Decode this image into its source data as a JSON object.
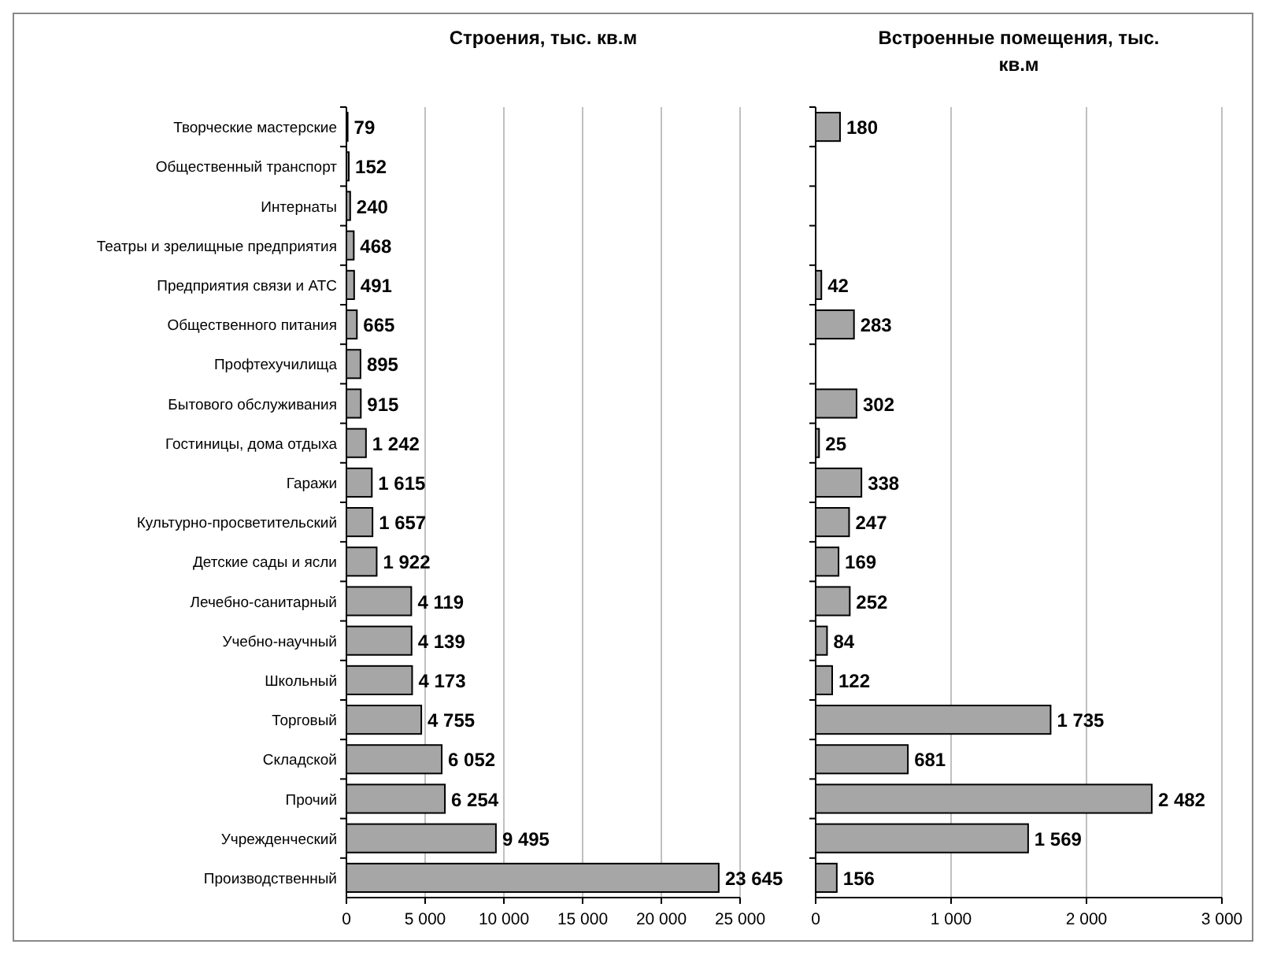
{
  "chart_data": [
    {
      "type": "bar",
      "orientation": "horizontal",
      "title": "Строения, тыс. кв.м",
      "categories": [
        "Творческие мастерские",
        "Общественный транспорт",
        "Интернаты",
        "Театры и зрелищные предприятия",
        "Предприятия связи и АТС",
        "Общественного питания",
        "Профтехучилища",
        "Бытового обслуживания",
        "Гостиницы, дома отдыха",
        "Гаражи",
        "Культурно-просветительский",
        "Детские сады и ясли",
        "Лечебно-санитарный",
        "Учебно-научный",
        "Школьный",
        "Торговый",
        "Складской",
        "Прочий",
        "Учрежденческий",
        "Производственный"
      ],
      "values": [
        79,
        152,
        240,
        468,
        491,
        665,
        895,
        915,
        1242,
        1615,
        1657,
        1922,
        4119,
        4139,
        4173,
        4755,
        6052,
        6254,
        9495,
        23645
      ],
      "value_labels": [
        "79",
        "152",
        "240",
        "468",
        "491",
        "665",
        "895",
        "915",
        "1 242",
        "1 615",
        "1 657",
        "1 922",
        "4 119",
        "4 139",
        "4 173",
        "4 755",
        "6 052",
        "6 254",
        "9 495",
        "23 645"
      ],
      "color": "#a6a6a6",
      "xlim": [
        0,
        25000
      ],
      "xticks": [
        0,
        {
          "value": 5000,
          "label": "5 000"
        },
        {
          "value": 10000,
          "label": "10 000"
        },
        {
          "value": 15000,
          "label": "15 000"
        },
        {
          "value": 20000,
          "label": "20 000"
        },
        {
          "value": 25000,
          "label": "25 000"
        }
      ],
      "grid": "x"
    },
    {
      "type": "bar",
      "orientation": "horizontal",
      "title": "Встроенные помещения, тыс. кв.м",
      "categories": [
        null,
        null,
        null,
        null,
        null,
        null,
        null,
        null,
        null,
        null,
        null,
        null,
        null,
        null,
        null,
        null,
        null,
        null,
        null,
        null
      ],
      "values": [
        180,
        null,
        null,
        null,
        42,
        283,
        null,
        302,
        25,
        338,
        247,
        169,
        252,
        84,
        122,
        1735,
        681,
        2482,
        1569,
        156
      ],
      "value_labels": [
        "180",
        null,
        null,
        null,
        "42",
        "283",
        null,
        "302",
        "25",
        "338",
        "247",
        "169",
        "252",
        "84",
        "122",
        "1 735",
        "681",
        "2 482",
        "1 569",
        "156"
      ],
      "color": "#a6a6a6",
      "xlim": [
        0,
        3000
      ],
      "xticks": [
        0,
        {
          "value": 1000,
          "label": "1 000"
        },
        {
          "value": 2000,
          "label": "2 000"
        },
        {
          "value": 3000,
          "label": "3 000"
        }
      ],
      "grid": "x",
      "tick_labels": "x"
    }
  ]
}
